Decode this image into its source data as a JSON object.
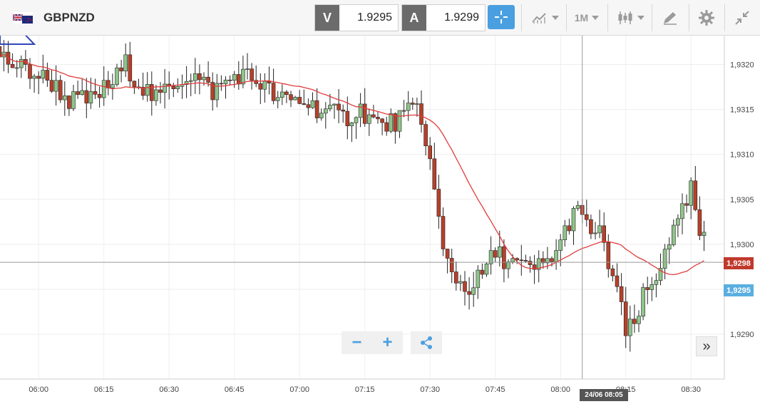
{
  "toolbar": {
    "symbol": "GBPNZD",
    "bid_tag": "V",
    "bid_value": "1.9295",
    "ask_tag": "A",
    "ask_value": "1.9299",
    "timeframe": "1M"
  },
  "chart_data": {
    "type": "candlestick",
    "title": "",
    "xlabel": "",
    "ylabel": "",
    "y_range": [
      1.9285,
      1.9324
    ],
    "y_ticks": [
      "1,9320",
      "1,9315",
      "1,9310",
      "1,9305",
      "1,9300",
      "1,9295",
      "1,9290"
    ],
    "y_tick_values": [
      1.932,
      1.9315,
      1.931,
      1.9305,
      1.93,
      1.9295,
      1.929
    ],
    "x_ticks": [
      "06:00",
      "06:15",
      "06:30",
      "06:45",
      "07:00",
      "07:15",
      "07:30",
      "07:45",
      "08:00",
      "08:15",
      "08:30"
    ],
    "x_tick_values": [
      360,
      375,
      390,
      405,
      420,
      435,
      450,
      465,
      480,
      495,
      510
    ],
    "x_start_minute": 348,
    "x_end_minute": 512,
    "minutes_per_candle": 1,
    "candles_hint": "one-minute OHLC candles; green = up, red = down",
    "ma_color": "#e23b3b",
    "up_color": "#8fc48a",
    "down_color": "#b7402a",
    "current_price_label": "1,9298",
    "current_price_value": 1.9298,
    "bid_price_label": "1,9295",
    "bid_price_value": 1.9295,
    "crosshair_time_label": "24/06 08:05",
    "crosshair_minute": 485,
    "crosshair_price": 1.9298
  }
}
